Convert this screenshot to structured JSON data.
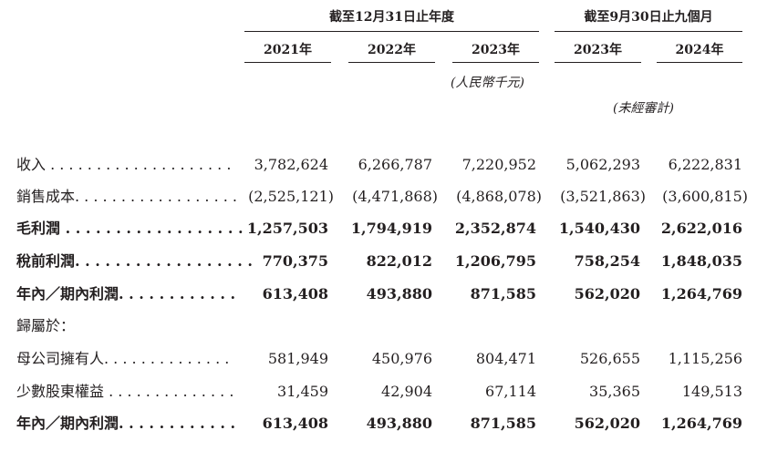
{
  "header": {
    "group_fy": "截至12月31日止年度",
    "group_9m": "截至9月30日止九個月",
    "years": [
      "2021年",
      "2022年",
      "2023年",
      "2023年",
      "2024年"
    ],
    "unit": "(人民幣千元)",
    "unaudited": "(未經審計)"
  },
  "rows": [
    {
      "label": "收入 . . . . . . . . . . . . . . . . . . . .",
      "values": [
        "3,782,624",
        "6,266,787",
        "7,220,952",
        "5,062,293",
        "6,222,831"
      ]
    },
    {
      "label": "銷售成本. . . . . . . . . . . . . . . . . .",
      "values": [
        "(2,525,121)",
        "(4,471,868)",
        "(4,868,078)",
        "(3,521,863)",
        "(3,600,815)"
      ]
    },
    {
      "label": "毛利潤 . . . . . . . . . . . . . . . . . .",
      "values": [
        "1,257,503",
        "1,794,919",
        "2,352,874",
        "1,540,430",
        "2,622,016"
      ]
    },
    {
      "label": "稅前利潤. . . . . . . . . . . . . . . . . .",
      "values": [
        "770,375",
        "822,012",
        "1,206,795",
        "758,254",
        "1,848,035"
      ]
    },
    {
      "label": "年內／期內利潤. . . . . . . . . . . .",
      "values": [
        "613,408",
        "493,880",
        "871,585",
        "562,020",
        "1,264,769"
      ]
    },
    {
      "label": "歸屬於：",
      "values": [
        "",
        "",
        "",
        "",
        ""
      ]
    },
    {
      "label": "母公司擁有人. . . . . . . . . . . . . .",
      "values": [
        "581,949",
        "450,976",
        "804,471",
        "526,655",
        "1,115,256"
      ]
    },
    {
      "label": "少數股東權益 . . . . . . . . . . . . . .",
      "values": [
        "31,459",
        "42,904",
        "67,114",
        "35,365",
        "149,513"
      ]
    },
    {
      "label": "年內／期內利潤. . . . . . . . . . . .",
      "values": [
        "613,408",
        "493,880",
        "871,585",
        "562,020",
        "1,264,769"
      ]
    }
  ]
}
